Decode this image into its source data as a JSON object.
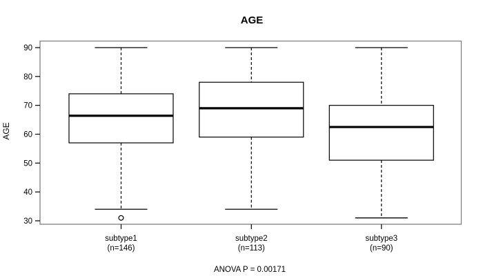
{
  "chart_data": {
    "type": "boxplot",
    "title": "AGE",
    "ylabel": "AGE",
    "xlabel": "",
    "annotation": "ANOVA P = 0.00171",
    "ylim": [
      28.5,
      92.5
    ],
    "y_ticks": [
      30,
      40,
      50,
      60,
      70,
      80,
      90
    ],
    "grid": "off",
    "legend": "none",
    "categories": [
      "subtype1",
      "subtype2",
      "subtype3"
    ],
    "category_sublabels": [
      "(n=146)",
      "(n=113)",
      "(n=90)"
    ],
    "series": [
      {
        "name": "subtype1",
        "n": 146,
        "whisker_low": 34,
        "q1": 57,
        "median": 66.4,
        "q3": 74,
        "whisker_high": 90,
        "outliers": [
          31
        ]
      },
      {
        "name": "subtype2",
        "n": 113,
        "whisker_low": 34,
        "q1": 59,
        "median": 69,
        "q3": 78,
        "whisker_high": 90,
        "outliers": []
      },
      {
        "name": "subtype3",
        "n": 90,
        "whisker_low": 31,
        "q1": 51,
        "median": 62.5,
        "q3": 70,
        "whisker_high": 90,
        "outliers": []
      }
    ],
    "colors": {
      "frame": "#808080",
      "line": "#000000",
      "box_fill": "#ffffff",
      "background": "#ffffff",
      "text": "#000000"
    }
  }
}
